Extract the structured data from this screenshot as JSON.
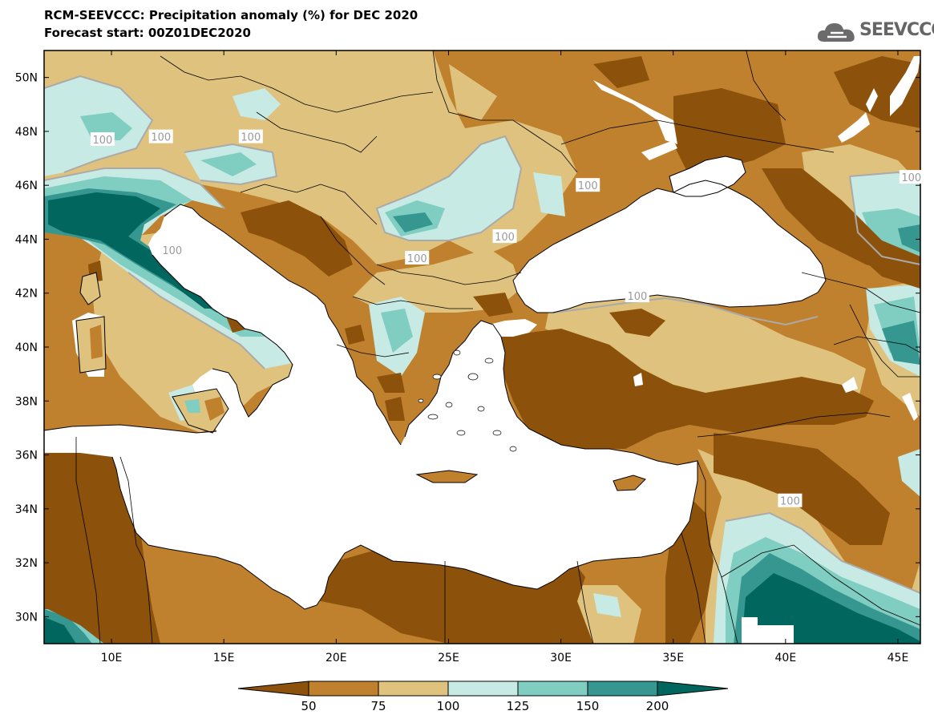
{
  "title": {
    "line1": "RCM-SEEVCCC: Precipitation anomaly (%) for DEC 2020",
    "line2": "Forecast start: 00Z01DEC2020"
  },
  "logo": {
    "text": "SEEVCCC",
    "icon": "cloud-icon"
  },
  "map": {
    "lon_range": [
      7,
      46
    ],
    "lat_range": [
      29,
      51
    ],
    "lat_ticks": [
      "50N",
      "48N",
      "46N",
      "44N",
      "42N",
      "40N",
      "38N",
      "36N",
      "34N",
      "32N",
      "30N"
    ],
    "lat_values": [
      50,
      48,
      46,
      44,
      42,
      40,
      38,
      36,
      34,
      32,
      30
    ],
    "lon_ticks": [
      "10E",
      "15E",
      "20E",
      "25E",
      "30E",
      "35E",
      "40E",
      "45E"
    ],
    "lon_values": [
      10,
      15,
      20,
      25,
      30,
      35,
      40,
      45
    ],
    "contour_labels": [
      {
        "text": "100",
        "lon": 9.6,
        "lat": 47.7
      },
      {
        "text": "100",
        "lon": 12.2,
        "lat": 47.8
      },
      {
        "text": "100",
        "lon": 16.2,
        "lat": 47.8
      },
      {
        "text": "100",
        "lon": 27.5,
        "lat": 44.1
      },
      {
        "text": "100",
        "lon": 31.2,
        "lat": 46.0
      },
      {
        "text": "100",
        "lon": 45.6,
        "lat": 46.3
      },
      {
        "text": "100",
        "lon": 12.7,
        "lat": 43.6
      },
      {
        "text": "100",
        "lon": 23.6,
        "lat": 43.3
      },
      {
        "text": "100",
        "lon": 33.4,
        "lat": 41.9
      },
      {
        "text": "100",
        "lon": 40.2,
        "lat": 34.3
      }
    ]
  },
  "colorbar": {
    "labels": [
      "50",
      "75",
      "100",
      "125",
      "150",
      "200"
    ],
    "colors": [
      "#8c510a",
      "#bf812d",
      "#dfc27d",
      "#c7eae5",
      "#80cdc1",
      "#35978f",
      "#01665e"
    ]
  }
}
